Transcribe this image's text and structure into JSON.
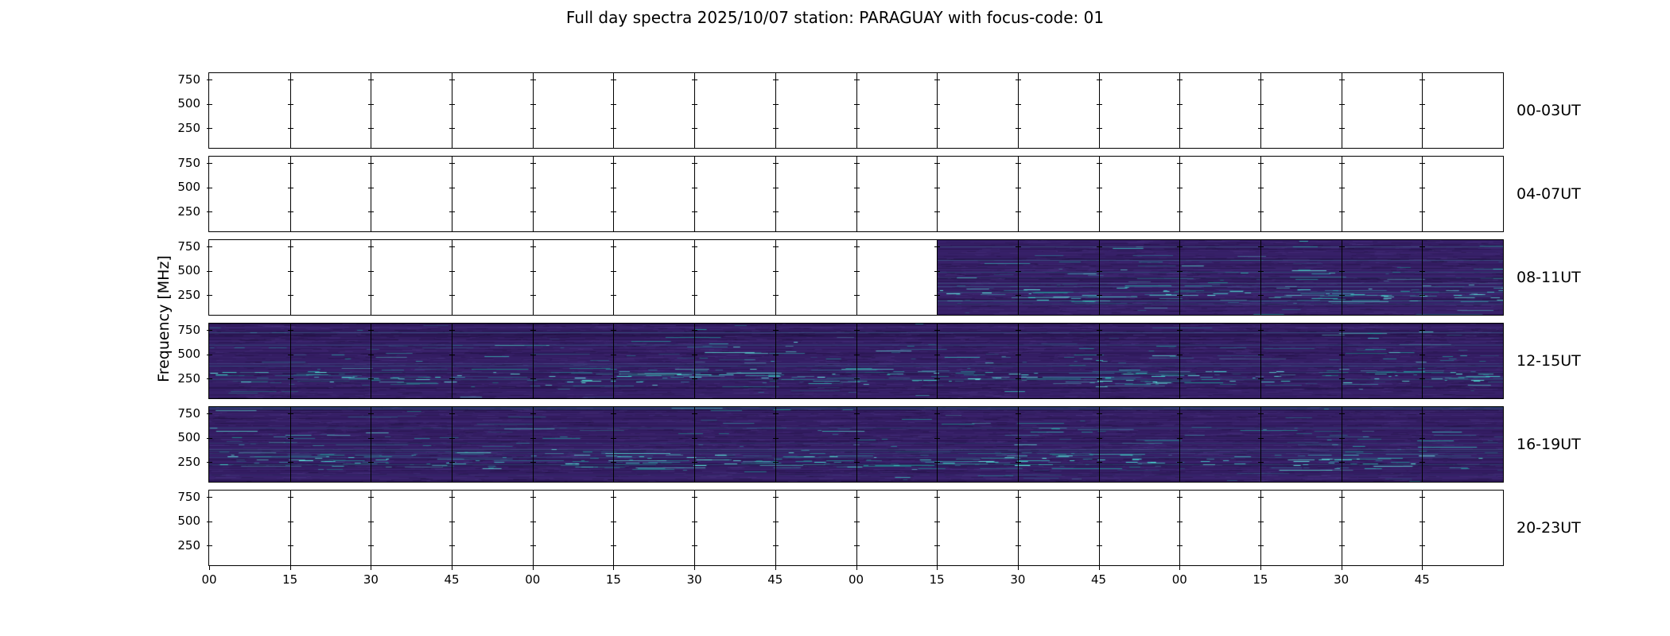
{
  "title": "Full day spectra 2025/10/07 station: PARAGUAY with focus-code: 01",
  "chart_data": {
    "type": "heatmap",
    "title": "Full day spectra 2025/10/07 station: PARAGUAY with focus-code: 01",
    "ylabel": "Frequency [MHz]",
    "station": "PARAGUAY",
    "date": "2025/10/07",
    "focus_code": "01",
    "freq_ticks": [
      "750",
      "500",
      "250"
    ],
    "x_tick_labels": [
      "00",
      "15",
      "30",
      "45",
      "00",
      "15",
      "30",
      "45",
      "00",
      "15",
      "30",
      "45",
      "00",
      "15",
      "30",
      "45"
    ],
    "panels_per_row": 16,
    "minutes_per_panel": 15,
    "rows": [
      {
        "label": "00-03UT",
        "data_start_panel": null,
        "data_end_panel": null
      },
      {
        "label": "04-07UT",
        "data_start_panel": null,
        "data_end_panel": null
      },
      {
        "label": "08-11UT",
        "data_start_panel": 9,
        "data_end_panel": 16
      },
      {
        "label": "12-15UT",
        "data_start_panel": 0,
        "data_end_panel": 16
      },
      {
        "label": "16-19UT",
        "data_start_panel": 0,
        "data_end_panel": 16
      },
      {
        "label": "20-23UT",
        "data_start_panel": null,
        "data_end_panel": null
      }
    ],
    "colors": {
      "spectrogram_base": "#341d63",
      "spectrogram_light": "#4a3585",
      "spectrogram_dark": "#1e0f3c",
      "streak_palette": [
        "#1f8a8c",
        "#23a3a0",
        "#39c6c0",
        "#5fe0d8",
        "#2c728e"
      ],
      "bright_palette": [
        "#45d4cc",
        "#63e8e0"
      ],
      "frame": "#000000",
      "no_data": "#ffffff",
      "background": "#ffffff"
    }
  }
}
